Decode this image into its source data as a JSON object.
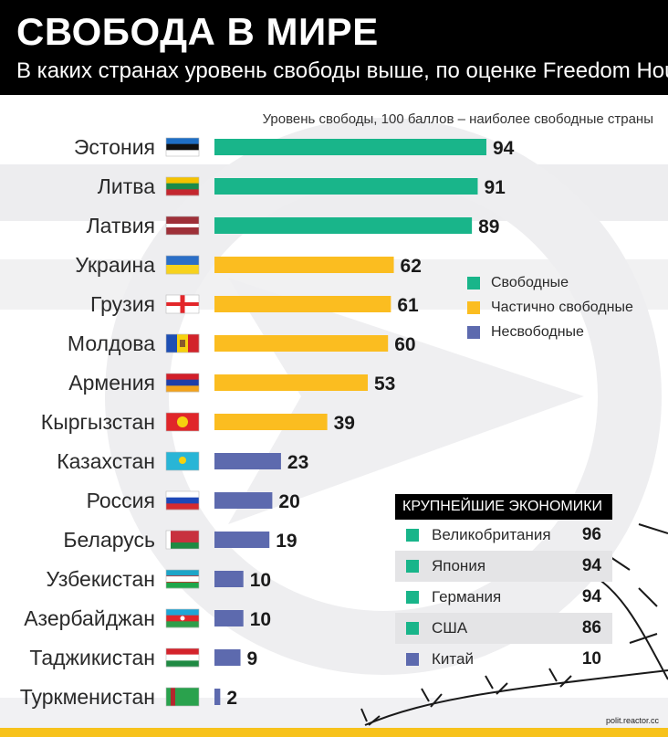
{
  "header": {
    "title": "СВОБОДА В МИРЕ",
    "subtitle": "В каких странах уровень свободы выше, по оценке Freedom House"
  },
  "chart_data": {
    "type": "bar",
    "orientation": "horizontal",
    "title": "СВОБОДА В МИРЕ",
    "subtitle": "В каких странах уровень свободы выше, по оценке Freedom House",
    "xlabel": "Уровень свободы, 100 баллов – наиболее свободные страны",
    "xlim": [
      0,
      100
    ],
    "grid": false,
    "legend_position": "right",
    "statuses": [
      {
        "key": "free",
        "label": "Свободные",
        "color": "#19b58a"
      },
      {
        "key": "partly",
        "label": "Частично свободные",
        "color": "#fbbd20"
      },
      {
        "key": "notfree",
        "label": "Несвободные",
        "color": "#5d6aae"
      }
    ],
    "categories": [
      "Эстония",
      "Литва",
      "Латвия",
      "Украина",
      "Грузия",
      "Молдова",
      "Армения",
      "Кыргызстан",
      "Казахстан",
      "Россия",
      "Беларусь",
      "Узбекистан",
      "Азербайджан",
      "Таджикистан",
      "Туркменистан"
    ],
    "values": [
      94,
      91,
      89,
      62,
      61,
      60,
      53,
      39,
      23,
      20,
      19,
      10,
      10,
      9,
      2
    ],
    "status": [
      "free",
      "free",
      "free",
      "partly",
      "partly",
      "partly",
      "partly",
      "partly",
      "notfree",
      "notfree",
      "notfree",
      "notfree",
      "notfree",
      "notfree",
      "notfree"
    ],
    "flags": [
      "flag-estonia",
      "flag-lithuania",
      "flag-latvia",
      "flag-ukraine",
      "flag-georgia",
      "flag-moldova",
      "flag-armenia",
      "flag-kyrgyzstan",
      "flag-kazakhstan",
      "flag-russia",
      "flag-belarus",
      "flag-uzbekistan",
      "flag-azerbaijan",
      "flag-tajikistan",
      "flag-turkmenistan"
    ]
  },
  "economies": {
    "title": "КРУПНЕЙШИЕ ЭКОНОМИКИ",
    "items": [
      {
        "name": "Великобритания",
        "value": "96",
        "status": "free"
      },
      {
        "name": "Япония",
        "value": "94",
        "status": "free"
      },
      {
        "name": "Германия",
        "value": "94",
        "status": "free"
      },
      {
        "name": "США",
        "value": "86",
        "status": "free"
      },
      {
        "name": "Китай",
        "value": "10",
        "status": "notfree"
      }
    ]
  },
  "footer": {
    "watermark": "polit.reactor.cc",
    "accent_color": "#f7c21b"
  }
}
